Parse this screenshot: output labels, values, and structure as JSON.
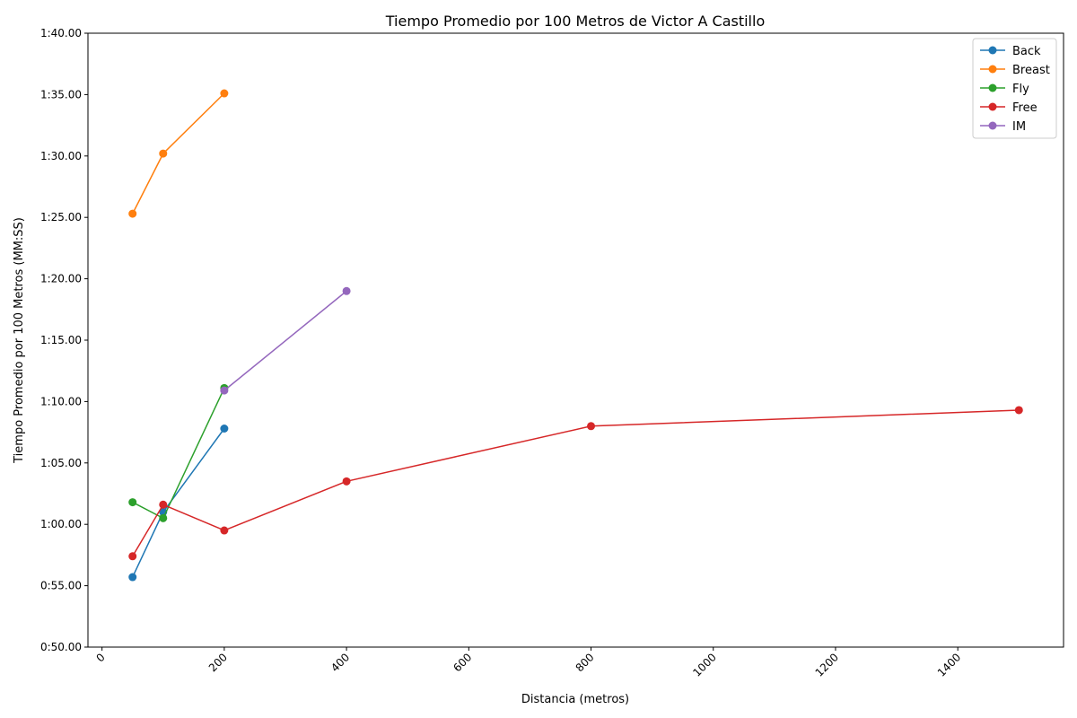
{
  "chart_data": {
    "type": "line",
    "title": "Tiempo Promedio por 100 Metros de Victor A Castillo",
    "xlabel": "Distancia (metros)",
    "ylabel": "Tiempo Promedio por 100 Metros (MM:SS)",
    "xlim": [
      -23,
      1573
    ],
    "ylim": [
      50,
      100
    ],
    "x_ticks": [
      0,
      200,
      400,
      600,
      800,
      1000,
      1200,
      1400
    ],
    "x_tick_labels": [
      "0",
      "200",
      "400",
      "600",
      "800",
      "1000",
      "1200",
      "1400"
    ],
    "y_ticks": [
      50,
      55,
      60,
      65,
      70,
      75,
      80,
      85,
      90,
      95,
      100
    ],
    "y_tick_labels": [
      "0:50.00",
      "0:55.00",
      "1:00.00",
      "1:05.00",
      "1:10.00",
      "1:15.00",
      "1:20.00",
      "1:25.00",
      "1:30.00",
      "1:35.00",
      "1:40.00"
    ],
    "grid": false,
    "legend_position": "top-right",
    "series": [
      {
        "name": "Back",
        "color": "#1f77b4",
        "x": [
          50,
          100,
          200
        ],
        "y": [
          55.7,
          61.0,
          67.8
        ]
      },
      {
        "name": "Breast",
        "color": "#ff7f0e",
        "x": [
          50,
          100,
          200
        ],
        "y": [
          85.3,
          90.2,
          95.1
        ]
      },
      {
        "name": "Fly",
        "color": "#2ca02c",
        "x": [
          50,
          100,
          200
        ],
        "y": [
          61.8,
          60.5,
          71.1
        ]
      },
      {
        "name": "Free",
        "color": "#d62728",
        "x": [
          50,
          100,
          200,
          400,
          800,
          1500
        ],
        "y": [
          57.4,
          61.6,
          59.5,
          63.5,
          68.0,
          69.3
        ]
      },
      {
        "name": "IM",
        "color": "#9467bd",
        "x": [
          200,
          400
        ],
        "y": [
          70.9,
          79.0
        ]
      }
    ]
  }
}
